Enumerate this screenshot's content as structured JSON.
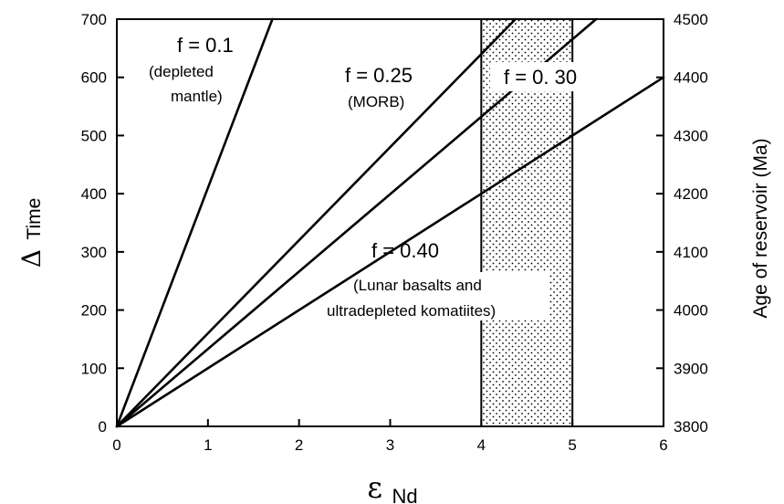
{
  "chart_data": {
    "type": "line",
    "x_axis": {
      "label_symbol": "ε",
      "label_subscript": "Nd",
      "range": [
        0,
        6
      ],
      "ticks": [
        0,
        1,
        2,
        3,
        4,
        5,
        6
      ]
    },
    "y_axis_left": {
      "label_symbol": "Δ",
      "label_text": "Time",
      "range": [
        0,
        700
      ],
      "ticks": [
        0,
        100,
        200,
        300,
        400,
        500,
        600,
        700
      ]
    },
    "y_axis_right": {
      "label": "Age of reservoir (Ma)",
      "range": [
        3800,
        4500
      ],
      "ticks": [
        3800,
        3900,
        4000,
        4100,
        4200,
        4300,
        4400,
        4500
      ]
    },
    "shaded_region": {
      "x_range": [
        4,
        5
      ],
      "pattern": "dotted"
    },
    "series": [
      {
        "name": "f = 0.1",
        "slope": 410,
        "x": [
          0,
          1.707
        ],
        "y": [
          0,
          700
        ]
      },
      {
        "name": "f = 0.25",
        "slope": 160,
        "x": [
          0,
          4.375
        ],
        "y": [
          0,
          700
        ]
      },
      {
        "name": "f = 0.30",
        "slope": 133,
        "x": [
          0,
          5.26
        ],
        "y": [
          0,
          700
        ]
      },
      {
        "name": "f = 0.40",
        "slope": 100,
        "x": [
          0,
          6
        ],
        "y": [
          0,
          600
        ]
      }
    ],
    "annotations": [
      {
        "line1": "f = 0.1",
        "line2": "(depleted",
        "line3": "mantle)"
      },
      {
        "line1": "f = 0.25",
        "line2": "(MORB)"
      },
      {
        "line1": "f = 0. 30"
      },
      {
        "line1": "f = 0.40",
        "line2": "(Lunar basalts and",
        "line3": "ultradepleted komatiites)"
      }
    ],
    "grid": false,
    "colors": {
      "lines": "#000000",
      "background": "#ffffff"
    }
  }
}
